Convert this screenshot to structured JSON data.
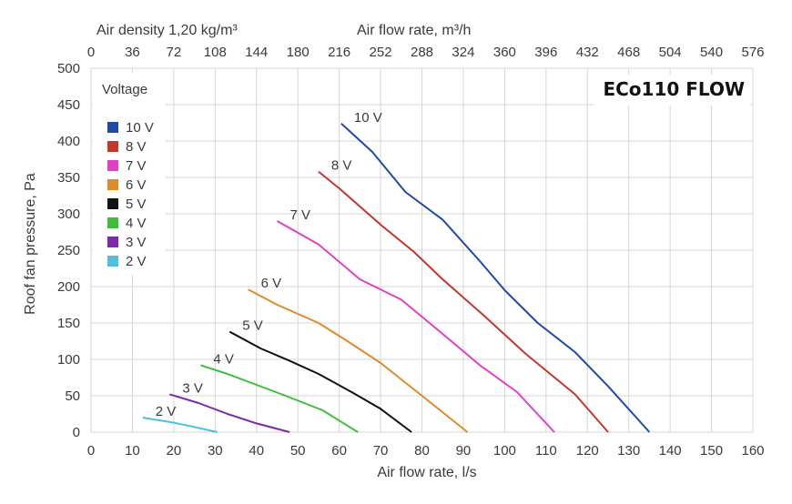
{
  "chart_data": {
    "type": "line",
    "title": "ECo110 FLOW",
    "xlabel": "Air flow rate, l/s",
    "ylabel": "Roof fan pressure, Pa",
    "top_axis_left_label": "Air density 1,20 kg/m³",
    "top_axis_label": "Air flow rate, m³/h",
    "xlim": [
      0,
      160
    ],
    "ylim": [
      0,
      500
    ],
    "x_ticks": [
      "0",
      "10",
      "20",
      "30",
      "40",
      "50",
      "60",
      "70",
      "80",
      "90",
      "100",
      "110",
      "120",
      "130",
      "140",
      "150",
      "160"
    ],
    "y_ticks": [
      "0",
      "50",
      "100",
      "150",
      "200",
      "250",
      "300",
      "350",
      "400",
      "450",
      "500"
    ],
    "top_ticks": [
      "0",
      "36",
      "72",
      "108",
      "144",
      "180",
      "216",
      "252",
      "288",
      "324",
      "360",
      "396",
      "432",
      "468",
      "504",
      "540",
      "576"
    ],
    "grid": true,
    "legend_title": "Voltage",
    "legend_position": "top-left",
    "series": [
      {
        "name": "10 V",
        "color": "#1f4aa8",
        "label": "10 V",
        "x": [
          60.5,
          68,
          76,
          85,
          94,
          100,
          108,
          117,
          125,
          135
        ],
        "y": [
          424,
          385,
          330,
          292,
          235,
          195,
          150,
          110,
          63,
          0
        ]
      },
      {
        "name": "8 V",
        "color": "#c0392b",
        "label": "8 V",
        "x": [
          55,
          60,
          70,
          78,
          85,
          95,
          105,
          117,
          125
        ],
        "y": [
          358,
          335,
          285,
          248,
          210,
          160,
          108,
          52,
          0
        ]
      },
      {
        "name": "7 V",
        "color": "#e040c8",
        "label": "7 V",
        "x": [
          45,
          55,
          65,
          75,
          85,
          94,
          103,
          112
        ],
        "y": [
          290,
          258,
          210,
          182,
          135,
          92,
          55,
          0
        ]
      },
      {
        "name": "6 V",
        "color": "#e08a2e",
        "label": "6 V",
        "x": [
          38,
          45,
          55,
          62,
          70,
          80,
          91
        ],
        "y": [
          196,
          175,
          150,
          125,
          95,
          50,
          0
        ]
      },
      {
        "name": "5 V",
        "color": "#111111",
        "label": "5 V",
        "x": [
          33.5,
          41,
          48,
          55,
          63,
          70,
          77.5
        ],
        "y": [
          138,
          115,
          98,
          80,
          55,
          32,
          0
        ]
      },
      {
        "name": "4 V",
        "color": "#3fbe3a",
        "label": "4 V",
        "x": [
          26.5,
          33,
          40,
          47,
          56,
          64.5
        ],
        "y": [
          92,
          80,
          65,
          50,
          30,
          0
        ]
      },
      {
        "name": "3 V",
        "color": "#7a2aa8",
        "label": "3 V",
        "x": [
          19,
          26,
          33,
          40,
          48
        ],
        "y": [
          52,
          40,
          25,
          12,
          0
        ]
      },
      {
        "name": "2 V",
        "color": "#4fc0dd",
        "label": "2 V",
        "x": [
          12.5,
          20,
          25,
          30.5
        ],
        "y": [
          20,
          13,
          7,
          0
        ]
      }
    ]
  }
}
